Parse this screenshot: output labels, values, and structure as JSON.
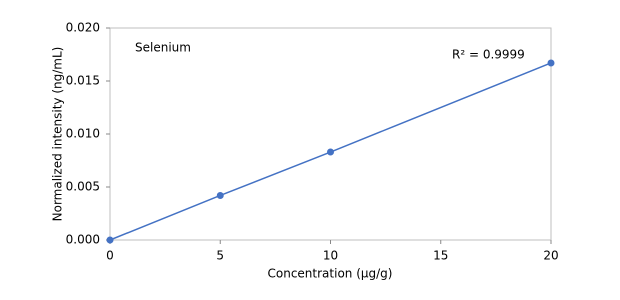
{
  "chart_data": {
    "type": "scatter",
    "title": "Selenium",
    "annotation": "R² = 0.9999",
    "x_label": "Concentration (µg/g)",
    "y_label": "Normalized intensity (ng/mL)",
    "series": [
      {
        "name": "Selenium",
        "color": "#4472c4",
        "x": [
          0,
          5,
          10,
          20
        ],
        "values": [
          0,
          0.0042,
          0.0083,
          0.0167
        ]
      }
    ],
    "trendline": true,
    "xlim": [
      0,
      20
    ],
    "xticks": [
      0,
      5,
      10,
      15,
      20
    ],
    "ylim": [
      0,
      0.02
    ],
    "yticks": [
      {
        "value": 0,
        "label": "0.000"
      },
      0.005,
      {
        "value": 0.01,
        "label": "0.010"
      },
      0.015,
      {
        "value": 0.02,
        "label": "0.020"
      }
    ],
    "grid": false
  }
}
